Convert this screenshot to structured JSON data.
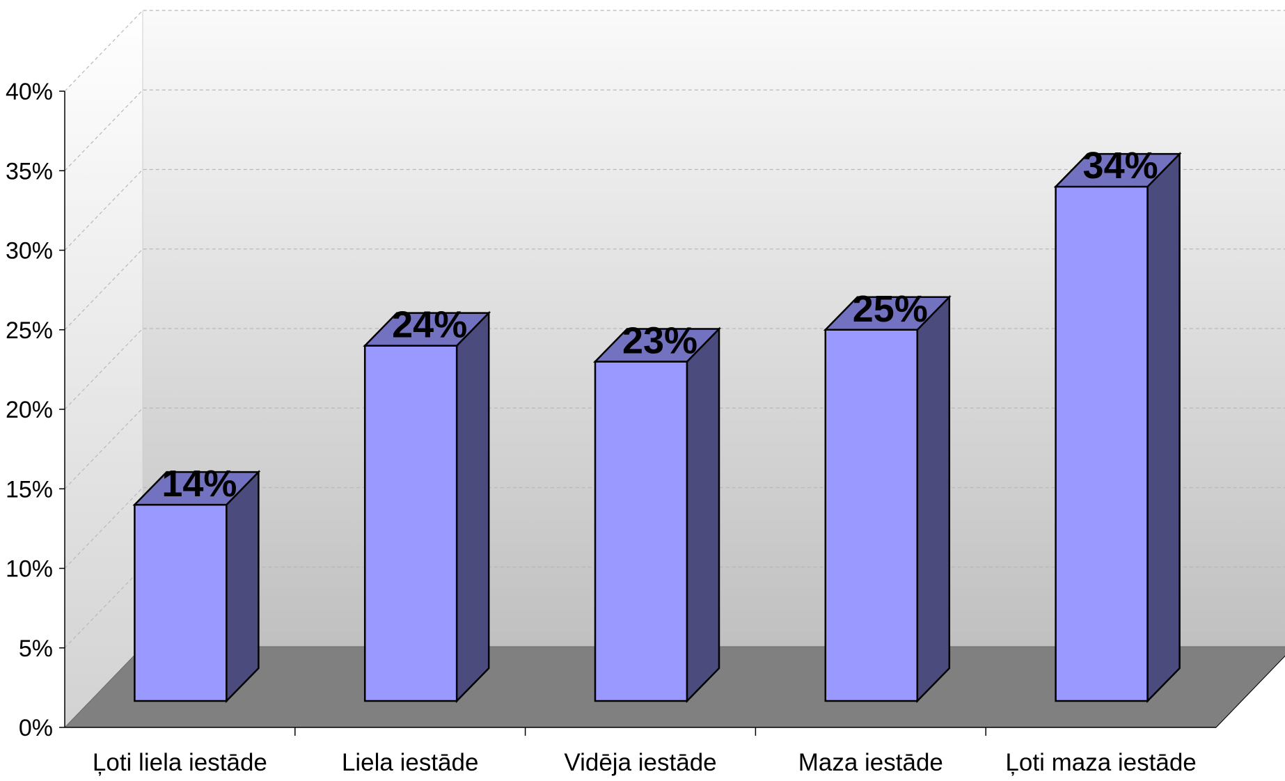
{
  "chart_data": {
    "type": "bar",
    "three_d": true,
    "categories": [
      "Ļoti liela iestāde",
      "Liela iestāde",
      "Vidēja iestāde",
      "Maza iestāde",
      "Ļoti maza iestāde"
    ],
    "values": [
      14,
      24,
      23,
      25,
      34
    ],
    "data_labels": [
      "14%",
      "24%",
      "23%",
      "25%",
      "34%"
    ],
    "ylim": [
      0,
      40
    ],
    "y_ticks": [
      "0%",
      "5%",
      "10%",
      "15%",
      "20%",
      "25%",
      "30%",
      "35%",
      "40%"
    ],
    "grid": true,
    "legend": "none",
    "colors": {
      "bar_front": "#9999FF",
      "bar_side": "#4B4B7E",
      "bar_top": "#7272C0",
      "floor": "#808080",
      "wall_top": "#FAFAFA",
      "wall_bottom": "#C0C0C0",
      "gridline": "#B8B8B8",
      "outline": "#000000"
    }
  }
}
